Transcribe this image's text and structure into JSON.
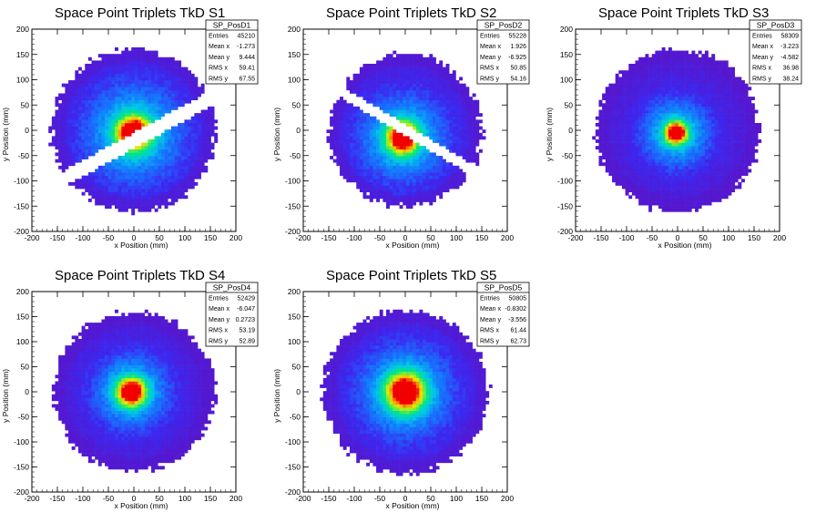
{
  "colors": {
    "frame": "#000000",
    "background": "#ffffff"
  },
  "chart_data": [
    {
      "type": "heatmap",
      "title": "Space Point Triplets TkD S1",
      "xlabel": "x Position (mm)",
      "ylabel": "y Position (mm)",
      "xlim": [
        -200,
        200
      ],
      "ylim": [
        -200,
        200
      ],
      "xticks": [
        "-200",
        "-150",
        "-100",
        "-50",
        "0",
        "50",
        "100",
        "150",
        "200"
      ],
      "yticks": [
        "-200",
        "-150",
        "-100",
        "-50",
        "0",
        "50",
        "100",
        "150",
        "200"
      ],
      "radius": 160,
      "peak": [
        0,
        -5
      ],
      "core_sigma": 22,
      "halo_sigma": 80,
      "gap": {
        "slope": 0.55,
        "offset": -20,
        "width": 14
      },
      "stats": {
        "name": "SP_PosD1",
        "rows": [
          {
            "label": "Entries",
            "value": "45210"
          },
          {
            "label": "Mean x",
            "value": "-1.273"
          },
          {
            "label": "Mean y",
            "value": "9.444"
          },
          {
            "label": "RMS x",
            "value": "59.41"
          },
          {
            "label": "RMS y",
            "value": "67.55"
          }
        ]
      }
    },
    {
      "type": "heatmap",
      "title": "Space Point Triplets TkD S2",
      "xlabel": "x Position (mm)",
      "ylabel": "y Position (mm)",
      "xlim": [
        -200,
        200
      ],
      "ylim": [
        -200,
        200
      ],
      "xticks": [
        "-200",
        "-150",
        "-100",
        "-50",
        "0",
        "50",
        "100",
        "150",
        "200"
      ],
      "yticks": [
        "-200",
        "-150",
        "-100",
        "-50",
        "0",
        "50",
        "100",
        "150",
        "200"
      ],
      "radius": 150,
      "peak": [
        -5,
        -15
      ],
      "core_sigma": 20,
      "halo_sigma": 70,
      "gap": {
        "slope": -0.6,
        "offset": 0,
        "width": 10
      },
      "stats": {
        "name": "SP_PosD2",
        "rows": [
          {
            "label": "Entries",
            "value": "55228"
          },
          {
            "label": "Mean x",
            "value": "1.926"
          },
          {
            "label": "Mean y",
            "value": "-6.925"
          },
          {
            "label": "RMS x",
            "value": "50.85"
          },
          {
            "label": "RMS y",
            "value": "54.16"
          }
        ]
      }
    },
    {
      "type": "heatmap",
      "title": "Space Point Triplets TkD S3",
      "xlabel": "x Position (mm)",
      "ylabel": "y Position (mm)",
      "xlim": [
        -200,
        200
      ],
      "ylim": [
        -200,
        200
      ],
      "xticks": [
        "-200",
        "-150",
        "-100",
        "-50",
        "0",
        "50",
        "100",
        "150",
        "200"
      ],
      "yticks": [
        "-200",
        "-150",
        "-100",
        "-50",
        "0",
        "50",
        "100",
        "150",
        "200"
      ],
      "radius": 160,
      "peak": [
        -3,
        -5
      ],
      "core_sigma": 14,
      "halo_sigma": 55,
      "gap": null,
      "stats": {
        "name": "SP_PosD3",
        "rows": [
          {
            "label": "Entries",
            "value": "58309"
          },
          {
            "label": "Mean x",
            "value": "-3.223"
          },
          {
            "label": "Mean y",
            "value": "-4.582"
          },
          {
            "label": "RMS x",
            "value": "36.98"
          },
          {
            "label": "RMS y",
            "value": "38.24"
          }
        ]
      }
    },
    {
      "type": "heatmap",
      "title": "Space Point Triplets TkD S4",
      "xlabel": "x Position (mm)",
      "ylabel": "y Position (mm)",
      "xlim": [
        -200,
        200
      ],
      "ylim": [
        -200,
        200
      ],
      "xticks": [
        "-200",
        "-150",
        "-100",
        "-50",
        "0",
        "50",
        "100",
        "150",
        "200"
      ],
      "yticks": [
        "-200",
        "-150",
        "-100",
        "-50",
        "0",
        "50",
        "100",
        "150",
        "200"
      ],
      "radius": 158,
      "peak": [
        -5,
        0
      ],
      "core_sigma": 18,
      "halo_sigma": 60,
      "gap": null,
      "stats": {
        "name": "SP_PosD4",
        "rows": [
          {
            "label": "Entries",
            "value": "52429"
          },
          {
            "label": "Mean x",
            "value": "-6.047"
          },
          {
            "label": "Mean y",
            "value": "0.2723"
          },
          {
            "label": "RMS x",
            "value": "53.19"
          },
          {
            "label": "RMS y",
            "value": "52.89"
          }
        ]
      }
    },
    {
      "type": "heatmap",
      "title": "Space Point Triplets TkD S5",
      "xlabel": "x Position (mm)",
      "ylabel": "y Position (mm)",
      "xlim": [
        -200,
        200
      ],
      "ylim": [
        -200,
        200
      ],
      "xticks": [
        "-200",
        "-150",
        "-100",
        "-50",
        "0",
        "50",
        "100",
        "150",
        "200"
      ],
      "yticks": [
        "-200",
        "-150",
        "-100",
        "-50",
        "0",
        "50",
        "100",
        "150",
        "200"
      ],
      "radius": 162,
      "peak": [
        0,
        0
      ],
      "core_sigma": 24,
      "halo_sigma": 75,
      "gap": null,
      "stats": {
        "name": "SP_PosD5",
        "rows": [
          {
            "label": "Entries",
            "value": "50805"
          },
          {
            "label": "Mean x",
            "value": "-0.8302"
          },
          {
            "label": "Mean y",
            "value": "-3.556"
          },
          {
            "label": "RMS x",
            "value": "61.44"
          },
          {
            "label": "RMS y",
            "value": "62.73"
          }
        ]
      }
    }
  ]
}
